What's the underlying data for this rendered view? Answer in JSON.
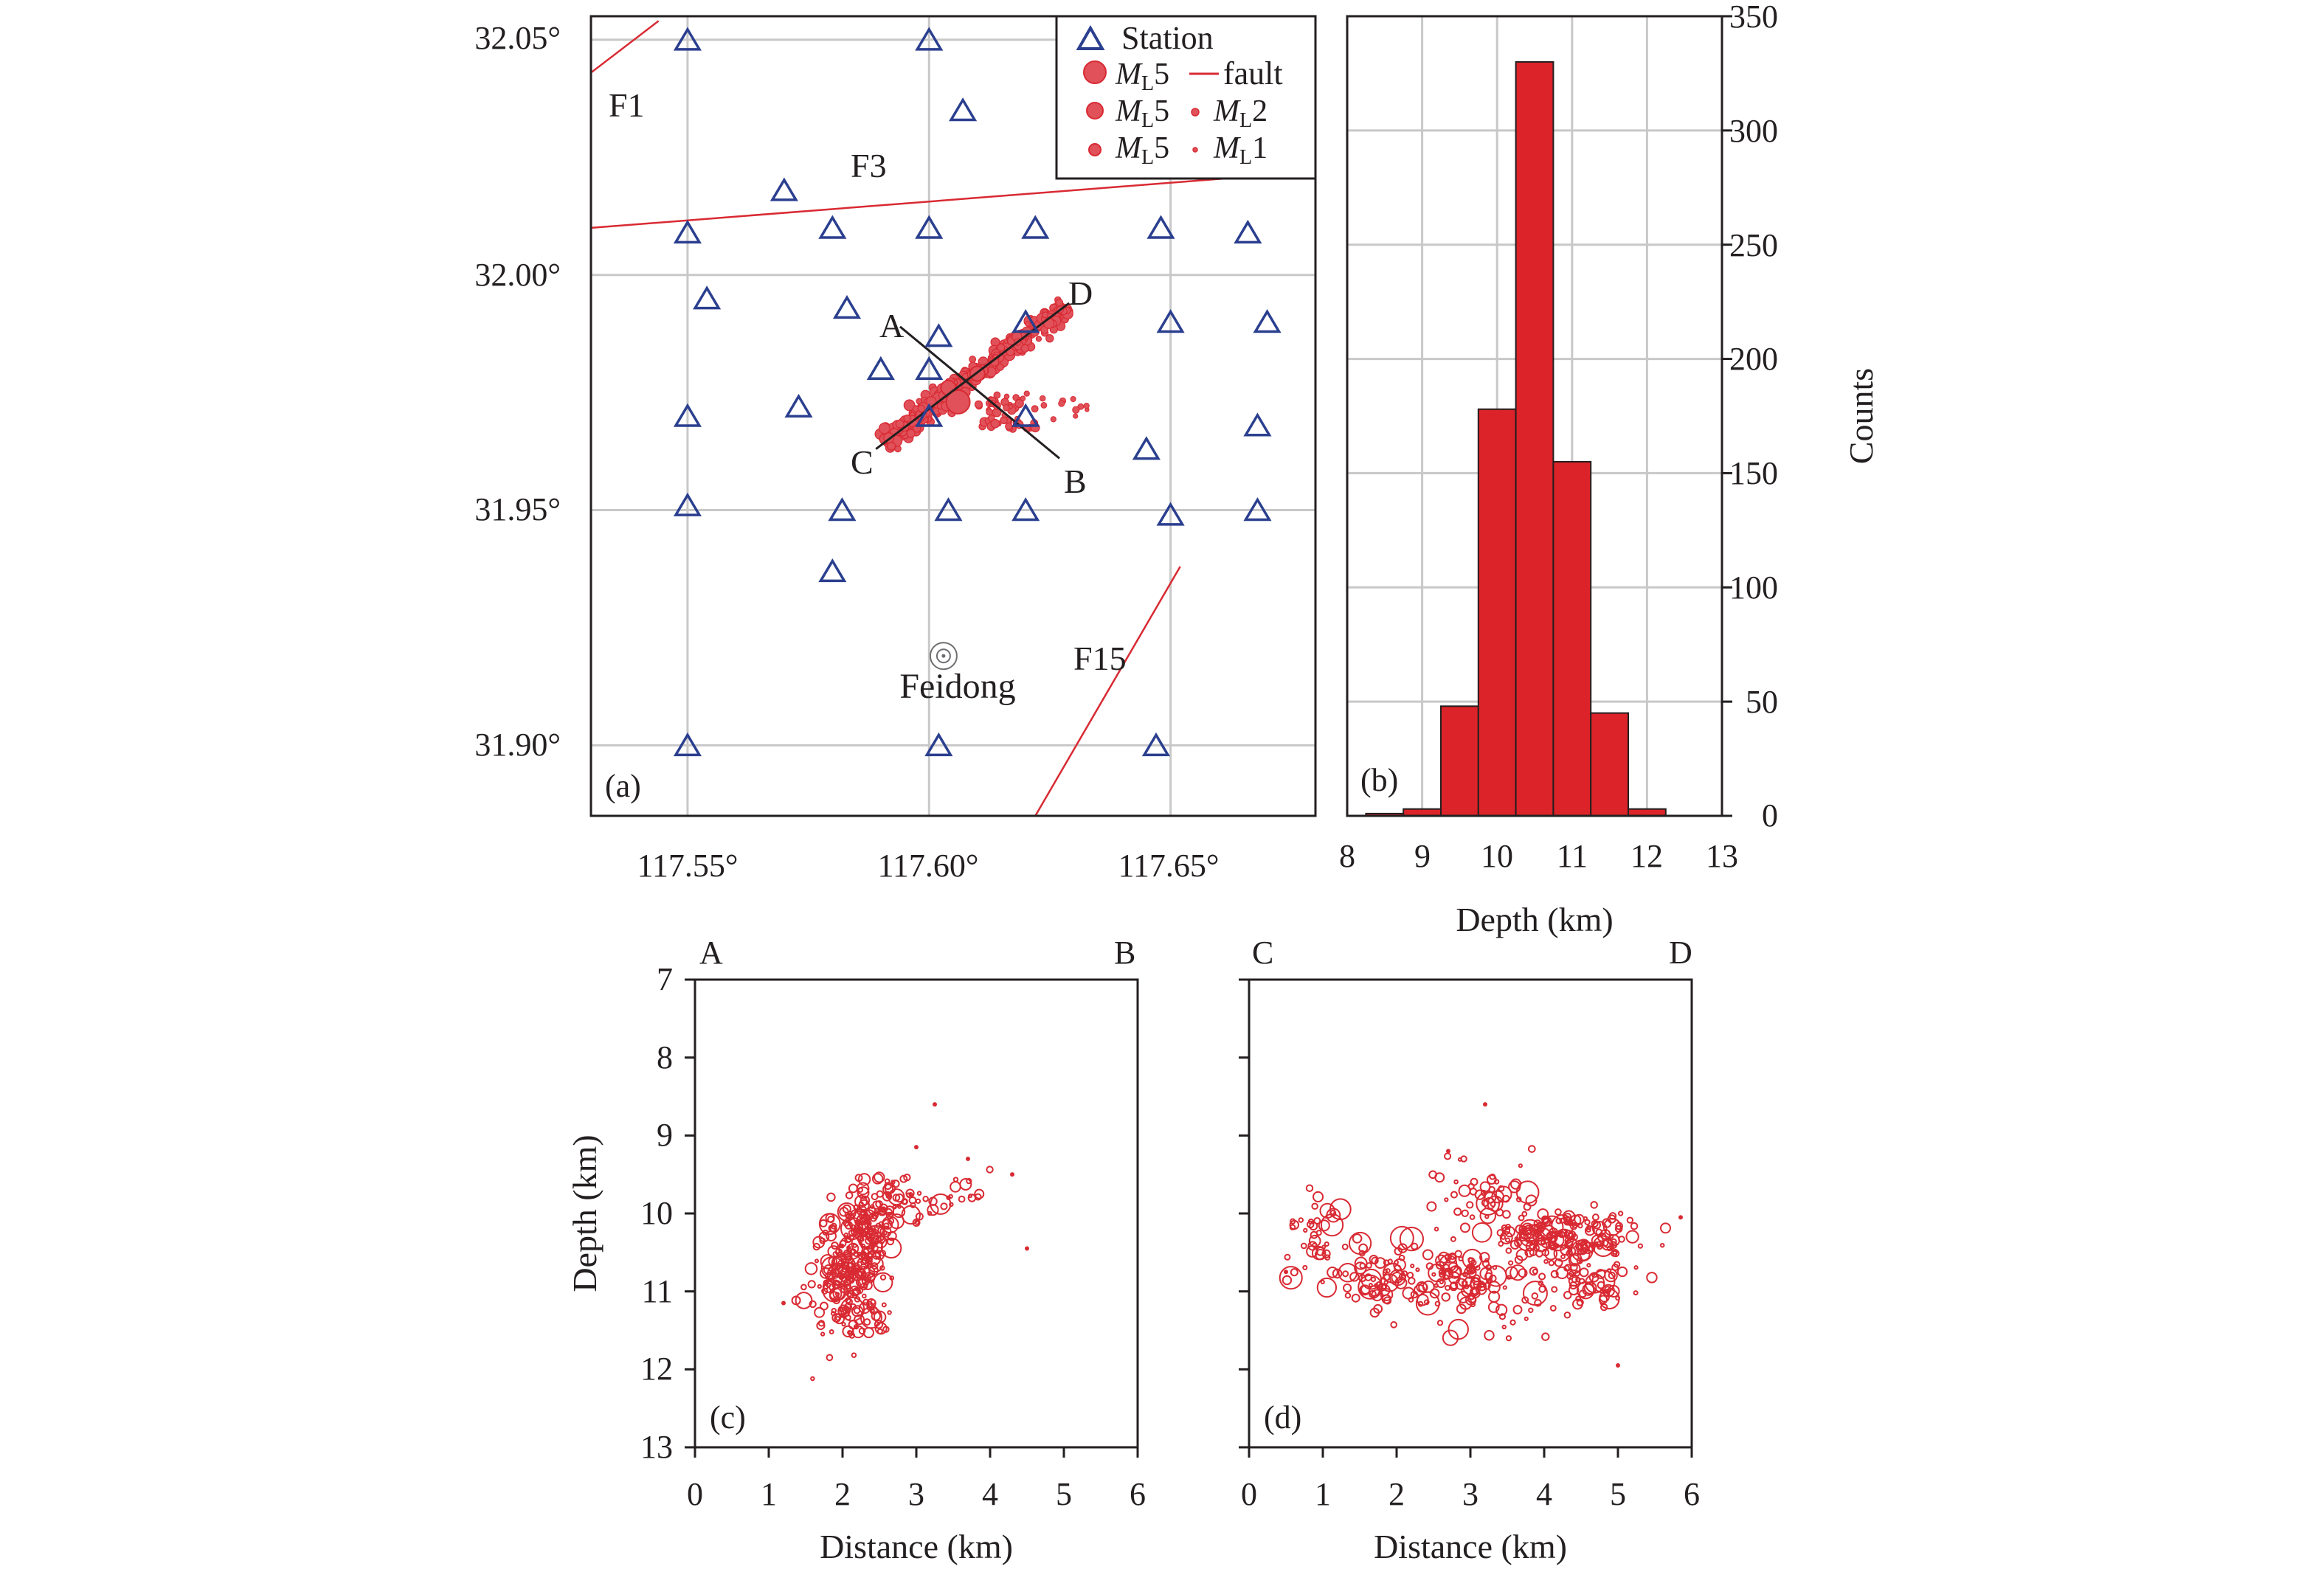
{
  "colors": {
    "event": "#d92a33",
    "station": "#2b3f8f",
    "fault": "#d92a33",
    "bar": "#dc2329",
    "grid": "#c8c8c8",
    "axis": "#231f20"
  },
  "map": {
    "panel_label": "(a)",
    "legend": {
      "station": "Station",
      "fault": "fault",
      "ml_prefix": "M",
      "ml_sub": "L",
      "mags": [
        "5",
        "5",
        "5",
        "2",
        "1"
      ]
    },
    "fault_labels": [
      "F1",
      "F3",
      "F15"
    ],
    "profile_labels": [
      "A",
      "B",
      "C",
      "D"
    ],
    "town": "Feidong",
    "x_ticks": [
      "117.55°",
      "117.60°",
      "117.65°"
    ],
    "y_ticks": [
      "32.05°",
      "32.00°",
      "31.95°",
      "31.90°"
    ]
  },
  "histogram": {
    "panel_label": "(b)",
    "xlabel": "Depth (km)",
    "ylabel": "Counts",
    "x_ticks": [
      "8",
      "9",
      "10",
      "11",
      "12",
      "13"
    ],
    "y_ticks": [
      "0",
      "50",
      "100",
      "150",
      "200",
      "250",
      "300",
      "350"
    ]
  },
  "section_ab": {
    "panel_label": "(c)",
    "start_label": "A",
    "end_label": "B",
    "xlabel": "Distance (km)",
    "ylabel": "Depth (km)",
    "x_ticks": [
      "0",
      "1",
      "2",
      "3",
      "4",
      "5",
      "6"
    ],
    "y_ticks": [
      "7",
      "8",
      "9",
      "10",
      "11",
      "12",
      "13"
    ]
  },
  "section_cd": {
    "panel_label": "(d)",
    "start_label": "C",
    "end_label": "D",
    "xlabel": "Distance (km)",
    "x_ticks": [
      "0",
      "1",
      "2",
      "3",
      "4",
      "5",
      "6"
    ]
  },
  "chart_data": [
    {
      "type": "scatter",
      "panel": "(a)",
      "xlim": [
        117.53,
        117.68
      ],
      "ylim": [
        31.885,
        32.055
      ],
      "grid": true,
      "legend_position": "top-right",
      "stations": [
        [
          117.55,
          32.05
        ],
        [
          117.6,
          32.05
        ],
        [
          117.607,
          32.035
        ],
        [
          117.57,
          32.018
        ],
        [
          117.55,
          32.009
        ],
        [
          117.58,
          32.01
        ],
        [
          117.6,
          32.01
        ],
        [
          117.622,
          32.01
        ],
        [
          117.648,
          32.01
        ],
        [
          117.666,
          32.009
        ],
        [
          117.554,
          31.995
        ],
        [
          117.583,
          31.993
        ],
        [
          117.602,
          31.987
        ],
        [
          117.62,
          31.99
        ],
        [
          117.65,
          31.99
        ],
        [
          117.67,
          31.99
        ],
        [
          117.59,
          31.98
        ],
        [
          117.6,
          31.98
        ],
        [
          117.573,
          31.972
        ],
        [
          117.55,
          31.97
        ],
        [
          117.6,
          31.97
        ],
        [
          117.62,
          31.97
        ],
        [
          117.645,
          31.963
        ],
        [
          117.668,
          31.968
        ],
        [
          117.55,
          31.951
        ],
        [
          117.582,
          31.95
        ],
        [
          117.604,
          31.95
        ],
        [
          117.62,
          31.95
        ],
        [
          117.65,
          31.949
        ],
        [
          117.668,
          31.95
        ],
        [
          117.58,
          31.937
        ],
        [
          117.55,
          31.9
        ],
        [
          117.602,
          31.9
        ],
        [
          117.647,
          31.9
        ]
      ],
      "town_location": [
        117.603,
        31.919
      ],
      "faults": [
        {
          "name": "F1",
          "points": [
            [
              117.53,
              32.043
            ],
            [
              117.544,
              32.054
            ]
          ]
        },
        {
          "name": "F3",
          "points": [
            [
              117.53,
              32.01
            ],
            [
              117.68,
              32.022
            ]
          ]
        },
        {
          "name": "F15",
          "points": [
            [
              117.622,
              31.885
            ],
            [
              117.652,
              31.938
            ]
          ]
        }
      ],
      "profiles": [
        {
          "name": "A-B",
          "start": [
            117.594,
            31.989
          ],
          "end": [
            117.627,
            31.961
          ]
        },
        {
          "name": "C-D",
          "start": [
            117.589,
            31.963
          ],
          "end": [
            117.629,
            31.994
          ]
        }
      ],
      "mainshock": [
        117.606,
        31.973
      ],
      "largest_events": [
        [
          117.604,
          31.976
        ],
        [
          117.61,
          31.979
        ]
      ]
    },
    {
      "type": "bar",
      "panel": "(b)",
      "bin_width": 0.5,
      "bin_starts": [
        8.25,
        8.75,
        9.25,
        9.75,
        10.25,
        10.75,
        11.25,
        11.75
      ],
      "values": [
        1,
        3,
        48,
        178,
        330,
        155,
        45,
        3
      ],
      "xlim": [
        8,
        13
      ],
      "ylim": [
        0,
        350
      ],
      "xlabel": "Depth (km)",
      "ylabel": "Counts",
      "grid": true
    },
    {
      "type": "scatter",
      "panel": "(c)",
      "profile": "A-B",
      "xlim": [
        0,
        6
      ],
      "ylim": [
        13,
        7
      ],
      "xlabel": "Distance (km)",
      "ylabel": "Depth (km)",
      "clusters": [
        {
          "cx": 2.1,
          "cy": 10.75,
          "sx": 0.22,
          "sy": 0.38,
          "n": 190
        },
        {
          "cx": 2.35,
          "cy": 10.25,
          "sx": 0.18,
          "sy": 0.3,
          "n": 110
        },
        {
          "cx": 2.8,
          "cy": 9.8,
          "sx": 0.28,
          "sy": 0.16,
          "n": 45
        },
        {
          "cx": 3.6,
          "cy": 9.75,
          "sx": 0.15,
          "sy": 0.12,
          "n": 14
        },
        {
          "cx": 2.2,
          "cy": 11.45,
          "sx": 0.22,
          "sy": 0.18,
          "n": 18
        }
      ],
      "isolated": [
        [
          3.25,
          8.6
        ],
        [
          4.3,
          9.5
        ],
        [
          4.5,
          10.45
        ],
        [
          3.0,
          9.15
        ],
        [
          3.7,
          9.3
        ],
        [
          1.2,
          11.15
        ]
      ]
    },
    {
      "type": "scatter",
      "panel": "(d)",
      "profile": "C-D",
      "xlim": [
        0,
        6
      ],
      "ylim": [
        13,
        7
      ],
      "xlabel": "Distance (km)",
      "clusters": [
        {
          "cx": 4.3,
          "cy": 10.3,
          "sx": 0.45,
          "sy": 0.16,
          "n": 150
        },
        {
          "cx": 4.55,
          "cy": 10.85,
          "sx": 0.4,
          "sy": 0.2,
          "n": 70
        },
        {
          "cx": 2.8,
          "cy": 10.8,
          "sx": 0.38,
          "sy": 0.22,
          "n": 80
        },
        {
          "cx": 1.8,
          "cy": 10.8,
          "sx": 0.38,
          "sy": 0.22,
          "n": 70
        },
        {
          "cx": 1.0,
          "cy": 10.45,
          "sx": 0.3,
          "sy": 0.3,
          "n": 40
        },
        {
          "cx": 3.2,
          "cy": 9.75,
          "sx": 0.4,
          "sy": 0.25,
          "n": 50
        },
        {
          "cx": 3.3,
          "cy": 11.1,
          "sx": 0.45,
          "sy": 0.28,
          "n": 40
        }
      ],
      "isolated": [
        [
          3.2,
          8.6
        ],
        [
          5.0,
          11.95
        ],
        [
          0.5,
          10.75
        ],
        [
          2.7,
          9.2
        ],
        [
          5.85,
          10.05
        ]
      ]
    }
  ]
}
